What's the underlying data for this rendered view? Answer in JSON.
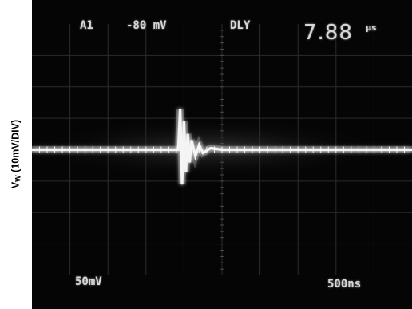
{
  "chart_data": {
    "type": "line",
    "ylabel_main": "V",
    "ylabel_sub": "W",
    "ylabel_rest": " (10mV/DIV)",
    "readouts": {
      "channel": "A1",
      "offset": "-80 mV",
      "mode": "DLY",
      "delay": "7.88",
      "delay_unit": "μs",
      "volts_per_div": "50mV",
      "time_per_div": "500ns"
    },
    "grid": true,
    "divisions": {
      "x": 10,
      "y": 8
    },
    "trace_color": "#f4f4f4",
    "x": [
      0,
      0.5,
      1.0,
      1.5,
      2.0,
      2.5,
      3.0,
      3.5,
      3.85,
      3.9,
      3.95,
      4.0,
      4.05,
      4.1,
      4.15,
      4.2,
      4.3,
      4.4,
      4.5,
      4.7,
      5.0,
      6.0,
      7.0,
      8.0,
      9.0,
      10.0
    ],
    "y": [
      0,
      0,
      0,
      0,
      0,
      0,
      0,
      0,
      0,
      1.3,
      -1.1,
      0.9,
      -0.7,
      0.5,
      -0.4,
      0.3,
      -0.2,
      0.15,
      -0.1,
      0.05,
      0,
      0,
      0,
      0,
      0,
      0
    ],
    "xlim": [
      0,
      10
    ],
    "ylim": [
      -4,
      4
    ]
  }
}
